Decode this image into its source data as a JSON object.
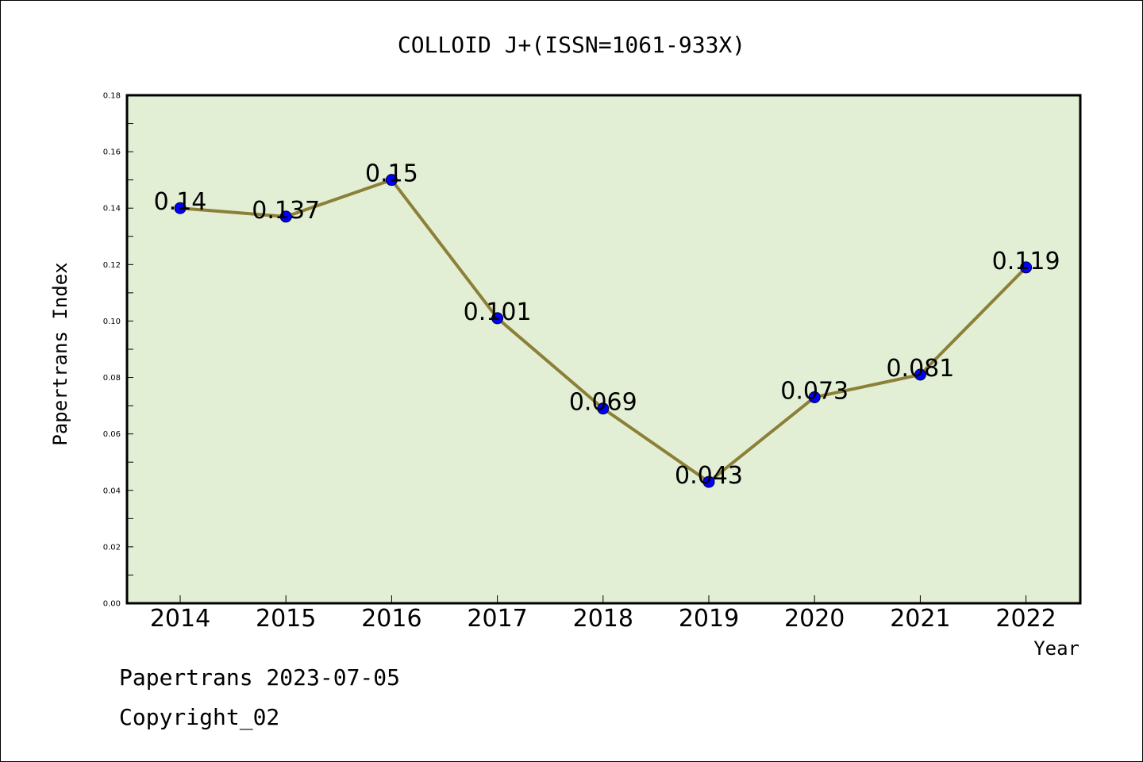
{
  "chart_data": {
    "type": "line",
    "title": "COLLOID J+(ISSN=1061-933X)",
    "xlabel": "Year",
    "ylabel": "Papertrans Index",
    "categories": [
      "2014",
      "2015",
      "2016",
      "2017",
      "2018",
      "2019",
      "2020",
      "2021",
      "2022"
    ],
    "values": [
      0.14,
      0.137,
      0.15,
      0.101,
      0.069,
      0.043,
      0.073,
      0.081,
      0.119
    ],
    "data_labels": [
      "0.14",
      "0.137",
      "0.15",
      "0.101",
      "0.069",
      "0.043",
      "0.073",
      "0.081",
      "0.119"
    ],
    "ylim": [
      0,
      0.18
    ],
    "yticks": [
      "0.00",
      "0.02",
      "0.04",
      "0.06",
      "0.08",
      "0.10",
      "0.12",
      "0.14",
      "0.16",
      "0.18"
    ],
    "grid": false,
    "colors": {
      "plot_background": "#e2efd5",
      "line": "#8c8038",
      "marker": "#0000ff"
    }
  },
  "footer": {
    "source": "Papertrans 2023-07-05",
    "copyright": "Copyright_02"
  }
}
